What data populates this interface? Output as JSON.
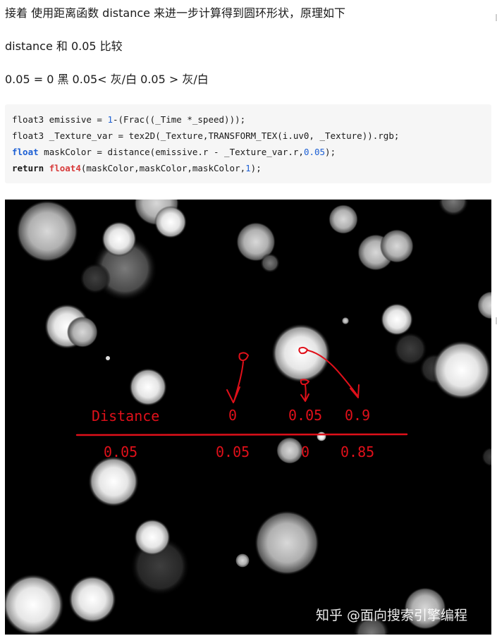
{
  "paragraphs": {
    "p1": "接着 使用距离函数 distance 来进一步计算得到圆环形状，原理如下",
    "p2": "distance 和 0.05 比较",
    "p3": "0.05 = 0 黑 0.05< 灰/白 0.05 > 灰/白"
  },
  "code": {
    "line1": {
      "a": "float3 emissive = ",
      "n1": "1",
      "b": "-(Frac((_Time *_speed)));"
    },
    "line2": {
      "a": "float3 _Texture_var = tex2D(_Texture,TRANSFORM_TEX(i.uv0, _Texture)).rgb;"
    },
    "line3": {
      "kw": "float",
      "a": " maskColor = distance(emissive.r - _Texture_var.r,",
      "n1": "0.05",
      "b": ");"
    },
    "line4": {
      "kw": "return",
      "sp": " ",
      "fn": "float4",
      "a": "(maskColor,maskColor,maskColor,",
      "n1": "1",
      "b": ");"
    }
  },
  "annotation": {
    "header": [
      "Distance",
      "0",
      "0.05",
      "0.9"
    ],
    "values": [
      "0.05",
      "0.05",
      "0",
      "0.85"
    ],
    "color": "#e0101a"
  },
  "watermark": "知乎 @面向搜索引擎编程"
}
